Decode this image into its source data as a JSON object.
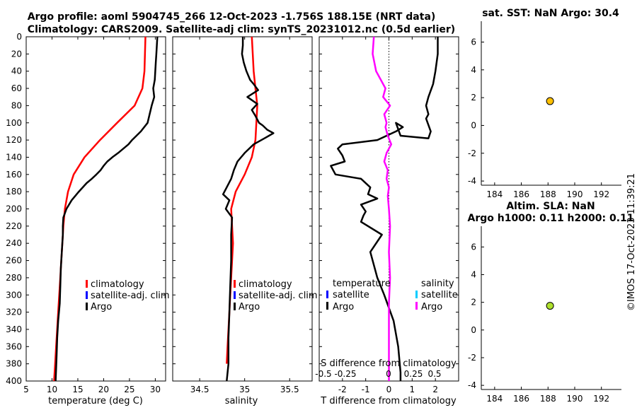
{
  "title": {
    "line1": "Argo profile: aoml 5904745_266 12-Oct-2023 -1.756S 188.15E (NRT data)",
    "line2": "Climatology: CARS2009. Satellite-adj clim: synTS_20231012.nc (0.5d earlier)"
  },
  "footer": {
    "timestamp": "©IMOS 17-Oct-2023 11:39:21"
  },
  "colors": {
    "climatology": "#ff0000",
    "satellite": "#0000ff",
    "argo": "#000000",
    "salinity_diff": "#ff00ff",
    "satellite_salinity": "#00ccff",
    "sst_marker": "#ffc000",
    "sla_marker": "#aee02c"
  },
  "depth_axis": {
    "ylim": [
      0,
      400
    ],
    "ticks": [
      0,
      20,
      40,
      60,
      80,
      100,
      120,
      140,
      160,
      180,
      200,
      220,
      240,
      260,
      280,
      300,
      320,
      340,
      360,
      380,
      400
    ],
    "reversed": true
  },
  "legend1": {
    "items": [
      "climatology",
      "satellite-adj. clim",
      "Argo"
    ]
  },
  "legend2": {
    "items": [
      "climatology",
      "satellite-adj. clim",
      "Argo"
    ]
  },
  "legend3": {
    "temperature_header": "temperature",
    "salinity_header": "salinity",
    "items_t": [
      "satellite",
      "Argo"
    ],
    "items_s": [
      "satellite",
      "Argo"
    ]
  },
  "sdiff_inset": {
    "label": "S difference from climatology",
    "ticks": [
      "-0.5",
      "-0.25",
      "0",
      "0.25",
      "0.5"
    ]
  },
  "sst_panel": {
    "title": "sat. SST: NaN Argo: 30.4"
  },
  "sla_panel": {
    "title1": "Altim. SLA: NaN",
    "title2": "Argo h1000: 0.11 h2000: 0.11"
  },
  "chart_data": [
    {
      "type": "line",
      "name": "temperature",
      "xlabel": "temperature (deg C)",
      "ylabel": "",
      "xlim": [
        5,
        32
      ],
      "xticks": [
        5,
        10,
        15,
        20,
        25,
        30
      ],
      "series": [
        {
          "name": "climatology",
          "x": [
            28.1,
            28.0,
            27.9,
            27.5,
            26.0,
            22.6,
            19.3,
            16.3,
            14.2,
            13.1,
            12.5,
            12.2,
            12.0,
            11.8,
            11.6,
            11.4,
            11.2,
            11.0,
            10.8,
            10.6,
            10.4
          ],
          "y": [
            0,
            20,
            40,
            60,
            80,
            100,
            120,
            140,
            160,
            180,
            200,
            220,
            240,
            260,
            280,
            300,
            320,
            340,
            360,
            380,
            400
          ]
        },
        {
          "name": "Argo",
          "x": [
            30.4,
            30.3,
            30.2,
            30.1,
            30.0,
            29.9,
            29.6,
            29.8,
            29.3,
            28.9,
            28.5,
            27.2,
            25.5,
            24.8,
            23.8,
            22.8,
            21.7,
            20.7,
            20.0,
            19.4,
            18.6,
            17.7,
            16.7,
            15.2,
            13.8,
            12.8,
            12.2,
            12.1,
            12.1,
            11.9,
            11.7,
            11.6,
            11.5,
            11.2,
            11.0,
            10.9,
            10.7
          ],
          "y": [
            0,
            10,
            20,
            30,
            40,
            50,
            60,
            70,
            80,
            90,
            100,
            110,
            120,
            125,
            130,
            135,
            140,
            145,
            150,
            155,
            160,
            165,
            170,
            180,
            190,
            200,
            210,
            220,
            230,
            250,
            270,
            290,
            310,
            330,
            350,
            370,
            400
          ]
        }
      ]
    },
    {
      "type": "line",
      "name": "salinity",
      "xlabel": "salinity",
      "ylabel": "",
      "xlim": [
        34.2,
        35.75
      ],
      "xticks": [
        34.5,
        35,
        35.5
      ],
      "xtick_labels": [
        "34.5",
        "35",
        "35.5"
      ],
      "series": [
        {
          "name": "climatology",
          "x": [
            35.08,
            35.09,
            35.1,
            35.12,
            35.14,
            35.13,
            35.12,
            35.08,
            35.0,
            34.9,
            34.85,
            34.86,
            34.87,
            34.86,
            34.85,
            34.84,
            34.83,
            34.82,
            34.81,
            34.8
          ],
          "y": [
            0,
            20,
            40,
            60,
            80,
            100,
            120,
            140,
            160,
            180,
            200,
            220,
            240,
            260,
            280,
            300,
            320,
            340,
            360,
            380
          ]
        },
        {
          "name": "Argo",
          "x": [
            34.98,
            34.98,
            34.97,
            34.99,
            35.02,
            35.06,
            35.1,
            35.15,
            35.03,
            35.14,
            35.08,
            35.12,
            35.16,
            35.2,
            35.25,
            35.32,
            35.22,
            35.1,
            35.0,
            34.92,
            34.88,
            34.85,
            34.8,
            34.76,
            34.83,
            34.79,
            34.86,
            34.85,
            34.85,
            34.84,
            34.83,
            34.82,
            34.82,
            34.8
          ],
          "y": [
            0,
            10,
            20,
            30,
            40,
            50,
            55,
            62,
            70,
            78,
            85,
            92,
            100,
            103,
            108,
            112,
            118,
            125,
            135,
            145,
            155,
            165,
            175,
            183,
            190,
            200,
            210,
            230,
            260,
            290,
            320,
            350,
            380,
            400
          ]
        }
      ]
    },
    {
      "type": "line",
      "name": "differences",
      "xlabel": "T difference from climatology",
      "ylabel": "",
      "xlim": [
        -3,
        3
      ],
      "xticks": [
        -2,
        -1,
        0,
        1,
        2
      ],
      "xtick_labels": [
        "-2",
        "-1",
        "0",
        "1",
        "2"
      ],
      "reference_line_x": 0,
      "series": [
        {
          "name": "T difference (Argo)",
          "x": [
            2.1,
            2.1,
            2.0,
            1.9,
            1.7,
            1.6,
            1.7,
            1.6,
            1.8,
            1.7,
            0.5,
            0.3,
            0.6,
            0.3,
            -0.5,
            -2.0,
            -2.2,
            -2.0,
            -1.9,
            -2.5,
            -2.3,
            -1.2,
            -0.8,
            -0.9,
            -0.5,
            -1.2,
            -1.0,
            -1.1,
            -1.2,
            -0.3,
            -0.8,
            -0.5,
            -0.2,
            0.2,
            0.4,
            0.5,
            0.5
          ],
          "y": [
            0,
            20,
            40,
            55,
            70,
            80,
            90,
            95,
            110,
            118,
            115,
            100,
            105,
            110,
            120,
            125,
            130,
            138,
            145,
            150,
            160,
            165,
            175,
            183,
            188,
            195,
            203,
            208,
            215,
            230,
            250,
            280,
            300,
            330,
            360,
            390,
            400
          ]
        },
        {
          "name": "S difference (Argo)",
          "x": [
            -0.65,
            -0.7,
            -0.55,
            -0.15,
            -0.25,
            0.05,
            -0.2,
            -0.1,
            -0.15,
            -0.05,
            0.1,
            -0.1,
            -0.2,
            -0.05,
            -0.1,
            0.0,
            -0.05,
            0.0,
            0.05,
            0.0,
            0.05,
            0.0,
            0.0,
            0.0,
            0.0
          ],
          "y": [
            0,
            20,
            40,
            60,
            70,
            80,
            90,
            100,
            105,
            115,
            125,
            135,
            145,
            155,
            165,
            175,
            185,
            200,
            220,
            250,
            280,
            310,
            340,
            370,
            400
          ]
        }
      ]
    },
    {
      "type": "scatter",
      "name": "sst",
      "xlim": [
        183,
        193.5
      ],
      "xticks": [
        184,
        186,
        188,
        190,
        192
      ],
      "ylim": [
        -4.3,
        7.5
      ],
      "yticks": [
        -4,
        -2,
        0,
        2,
        4,
        6
      ],
      "points": [
        {
          "x": 188.15,
          "y": 1.75
        }
      ]
    },
    {
      "type": "scatter",
      "name": "sla",
      "xlim": [
        183,
        193.5
      ],
      "xticks": [
        184,
        186,
        188,
        190,
        192
      ],
      "ylim": [
        -4.3,
        7.5
      ],
      "yticks": [
        -4,
        -2,
        0,
        2,
        4,
        6
      ],
      "points": [
        {
          "x": 188.15,
          "y": 1.75
        }
      ]
    }
  ]
}
